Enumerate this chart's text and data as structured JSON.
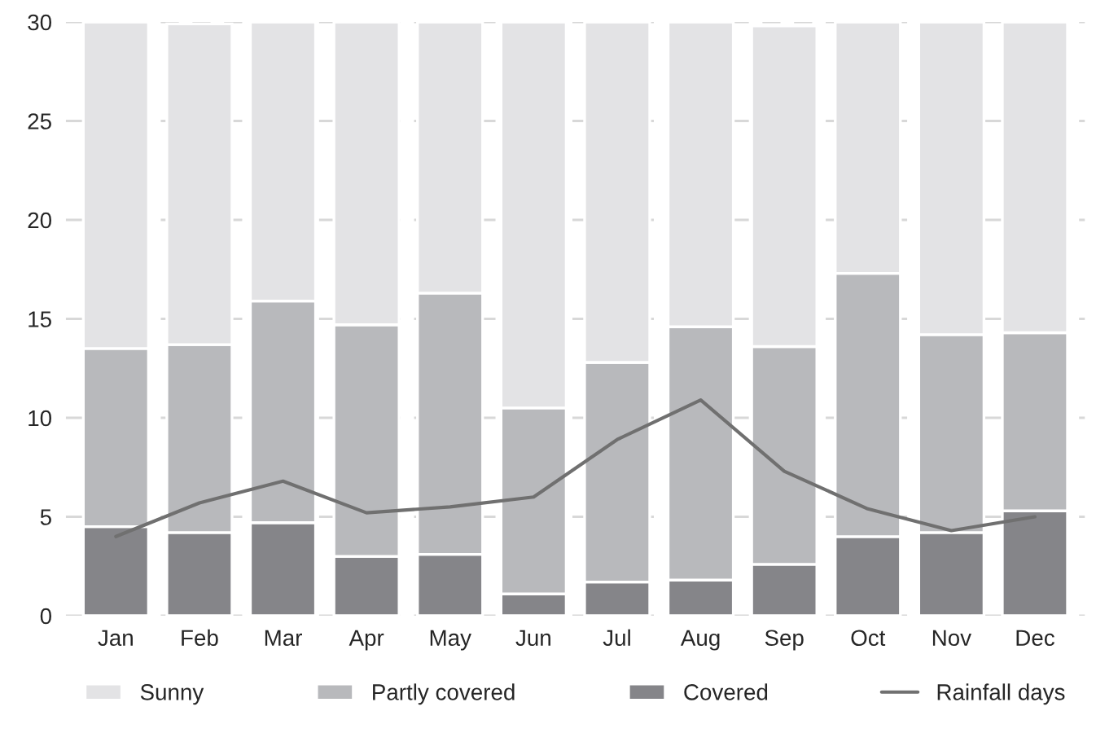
{
  "chart_data": {
    "type": "bar",
    "stacked": true,
    "categories": [
      "Jan",
      "Feb",
      "Mar",
      "Apr",
      "May",
      "Jun",
      "Jul",
      "Aug",
      "Sep",
      "Oct",
      "Nov",
      "Dec"
    ],
    "series": [
      {
        "name": "Covered",
        "color": "#858589",
        "values": [
          4.5,
          4.2,
          4.7,
          3.0,
          3.1,
          1.1,
          1.7,
          1.8,
          2.6,
          4.0,
          4.2,
          5.3
        ]
      },
      {
        "name": "Partly covered",
        "color": "#b8b9bc",
        "values": [
          9.0,
          9.5,
          11.2,
          11.7,
          13.2,
          9.4,
          11.1,
          12.8,
          11.0,
          13.3,
          10.0,
          9.0
        ]
      },
      {
        "name": "Sunny",
        "color": "#e3e3e5",
        "values": [
          16.5,
          16.2,
          14.1,
          15.3,
          13.7,
          19.5,
          17.2,
          15.4,
          16.2,
          12.7,
          15.8,
          15.7
        ]
      },
      {
        "name": "Rainfall days",
        "type": "line",
        "color": "#707070",
        "values": [
          4.0,
          5.7,
          6.8,
          5.2,
          5.5,
          6.0,
          8.9,
          10.9,
          7.3,
          5.4,
          4.3,
          5.0
        ]
      }
    ],
    "ylim": [
      0,
      30
    ],
    "yticks": [
      0,
      5,
      10,
      15,
      20,
      25,
      30
    ],
    "grid": "y",
    "legend": "bottom"
  }
}
